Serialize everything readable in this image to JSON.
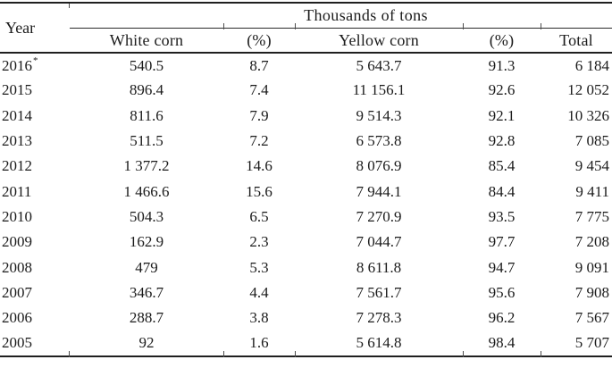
{
  "page": {
    "background": "#ffffff",
    "text_color": "#1b1b1b",
    "rule_color": "#1f1f1f"
  },
  "table": {
    "header": {
      "year_label": "Year",
      "group_label": "Thousands of tons",
      "columns": [
        "White corn",
        "(%)",
        "Yellow corn",
        "(%)",
        "Total"
      ]
    },
    "rows": [
      {
        "year": "2016",
        "note": "*",
        "white_corn": "540.5",
        "white_pct": "8.7",
        "yellow_corn": "5 643.7",
        "yellow_pct": "91.3",
        "total": "6 184"
      },
      {
        "year": "2015",
        "note": "",
        "white_corn": "896.4",
        "white_pct": "7.4",
        "yellow_corn": "11 156.1",
        "yellow_pct": "92.6",
        "total": "12 052"
      },
      {
        "year": "2014",
        "note": "",
        "white_corn": "811.6",
        "white_pct": "7.9",
        "yellow_corn": "9 514.3",
        "yellow_pct": "92.1",
        "total": "10 326"
      },
      {
        "year": "2013",
        "note": "",
        "white_corn": "511.5",
        "white_pct": "7.2",
        "yellow_corn": "6 573.8",
        "yellow_pct": "92.8",
        "total": "7 085"
      },
      {
        "year": "2012",
        "note": "",
        "white_corn": "1 377.2",
        "white_pct": "14.6",
        "yellow_corn": "8 076.9",
        "yellow_pct": "85.4",
        "total": "9 454"
      },
      {
        "year": "2011",
        "note": "",
        "white_corn": "1 466.6",
        "white_pct": "15.6",
        "yellow_corn": "7 944.1",
        "yellow_pct": "84.4",
        "total": "9 411"
      },
      {
        "year": "2010",
        "note": "",
        "white_corn": "504.3",
        "white_pct": "6.5",
        "yellow_corn": "7 270.9",
        "yellow_pct": "93.5",
        "total": "7 775"
      },
      {
        "year": "2009",
        "note": "",
        "white_corn": "162.9",
        "white_pct": "2.3",
        "yellow_corn": "7 044.7",
        "yellow_pct": "97.7",
        "total": "7 208"
      },
      {
        "year": "2008",
        "note": "",
        "white_corn": "479",
        "white_pct": "5.3",
        "yellow_corn": "8 611.8",
        "yellow_pct": "94.7",
        "total": "9 091"
      },
      {
        "year": "2007",
        "note": "",
        "white_corn": "346.7",
        "white_pct": "4.4",
        "yellow_corn": "7 561.7",
        "yellow_pct": "95.6",
        "total": "7 908"
      },
      {
        "year": "2006",
        "note": "",
        "white_corn": "288.7",
        "white_pct": "3.8",
        "yellow_corn": "7 278.3",
        "yellow_pct": "96.2",
        "total": "7 567"
      },
      {
        "year": "2005",
        "note": "",
        "white_corn": "92",
        "white_pct": "1.6",
        "yellow_corn": "5 614.8",
        "yellow_pct": "98.4",
        "total": "5 707"
      }
    ]
  },
  "chart_data": {
    "type": "table",
    "title": "Thousands of tons",
    "categories": [
      "2016*",
      "2015",
      "2014",
      "2013",
      "2012",
      "2011",
      "2010",
      "2009",
      "2008",
      "2007",
      "2006",
      "2005"
    ],
    "series": [
      {
        "name": "White corn",
        "values": [
          540.5,
          896.4,
          811.6,
          511.5,
          1377.2,
          1466.6,
          504.3,
          162.9,
          479,
          346.7,
          288.7,
          92
        ]
      },
      {
        "name": "White corn (%)",
        "values": [
          8.7,
          7.4,
          7.9,
          7.2,
          14.6,
          15.6,
          6.5,
          2.3,
          5.3,
          4.4,
          3.8,
          1.6
        ]
      },
      {
        "name": "Yellow corn",
        "values": [
          5643.7,
          11156.1,
          9514.3,
          6573.8,
          8076.9,
          7944.1,
          7270.9,
          7044.7,
          8611.8,
          7561.7,
          7278.3,
          5614.8
        ]
      },
      {
        "name": "Yellow corn (%)",
        "values": [
          91.3,
          92.6,
          92.1,
          92.8,
          85.4,
          84.4,
          93.5,
          97.7,
          94.7,
          95.6,
          96.2,
          98.4
        ]
      },
      {
        "name": "Total",
        "values": [
          6184,
          12052,
          10326,
          7085,
          9454,
          9411,
          7775,
          7208,
          9091,
          7908,
          7567,
          5707
        ]
      }
    ]
  }
}
